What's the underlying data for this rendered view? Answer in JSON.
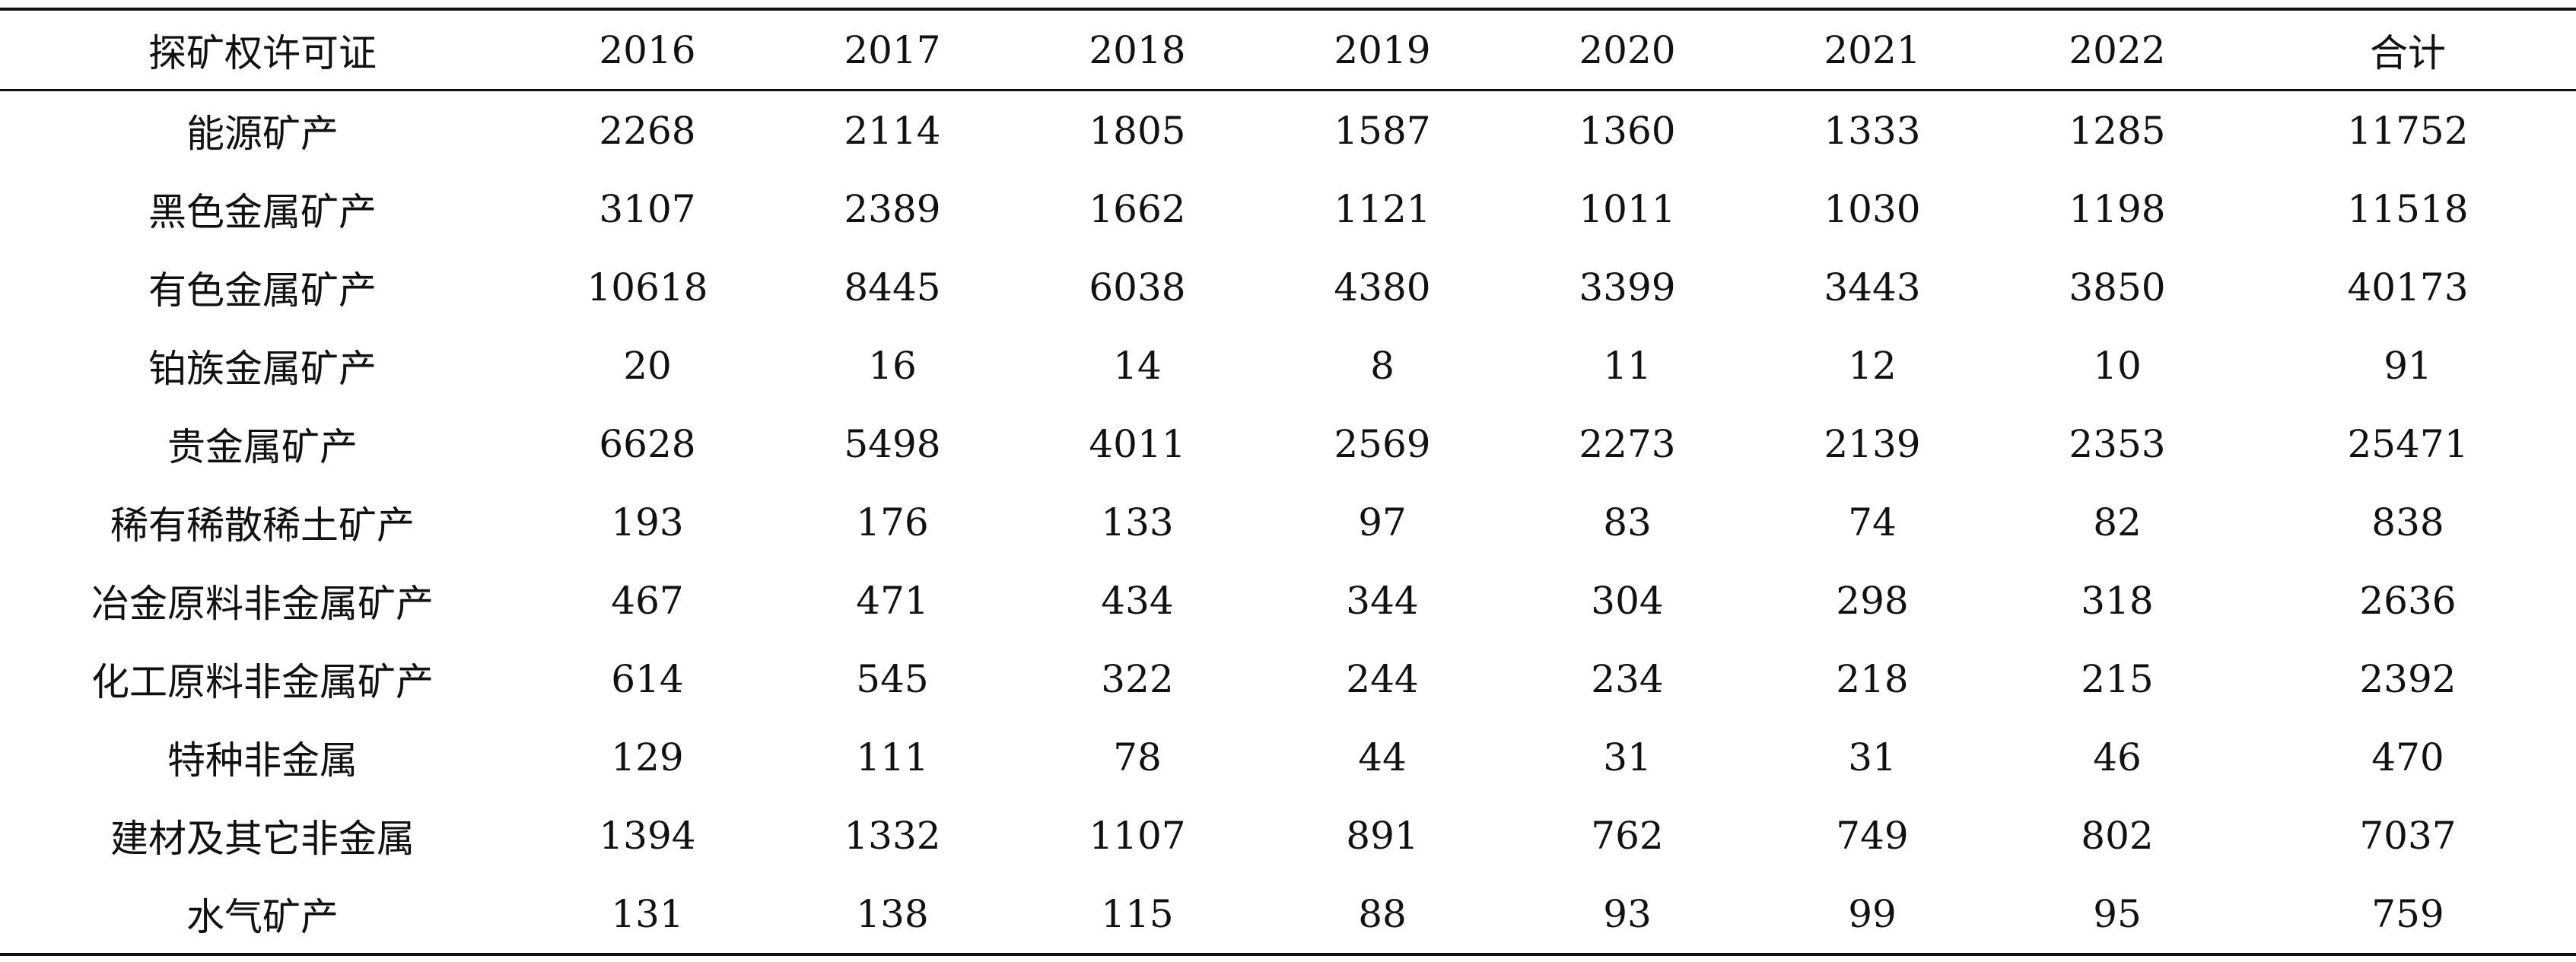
{
  "chart_data": {
    "type": "table",
    "columns": [
      "探矿权许可证",
      "2016",
      "2017",
      "2018",
      "2019",
      "2020",
      "2021",
      "2022",
      "合计"
    ],
    "rows": [
      {
        "category": "能源矿产",
        "values": [
          2268,
          2114,
          1805,
          1587,
          1360,
          1333,
          1285,
          11752
        ]
      },
      {
        "category": "黑色金属矿产",
        "values": [
          3107,
          2389,
          1662,
          1121,
          1011,
          1030,
          1198,
          11518
        ]
      },
      {
        "category": "有色金属矿产",
        "values": [
          10618,
          8445,
          6038,
          4380,
          3399,
          3443,
          3850,
          40173
        ]
      },
      {
        "category": "铂族金属矿产",
        "values": [
          20,
          16,
          14,
          8,
          11,
          12,
          10,
          91
        ]
      },
      {
        "category": "贵金属矿产",
        "values": [
          6628,
          5498,
          4011,
          2569,
          2273,
          2139,
          2353,
          25471
        ]
      },
      {
        "category": "稀有稀散稀土矿产",
        "values": [
          193,
          176,
          133,
          97,
          83,
          74,
          82,
          838
        ]
      },
      {
        "category": "冶金原料非金属矿产",
        "values": [
          467,
          471,
          434,
          344,
          304,
          298,
          318,
          2636
        ]
      },
      {
        "category": "化工原料非金属矿产",
        "values": [
          614,
          545,
          322,
          244,
          234,
          218,
          215,
          2392
        ]
      },
      {
        "category": "特种非金属",
        "values": [
          129,
          111,
          78,
          44,
          31,
          31,
          46,
          470
        ]
      },
      {
        "category": "建材及其它非金属",
        "values": [
          1394,
          1332,
          1107,
          891,
          762,
          749,
          802,
          7037
        ]
      },
      {
        "category": "水气矿产",
        "values": [
          131,
          138,
          115,
          88,
          93,
          99,
          95,
          759
        ]
      }
    ]
  }
}
